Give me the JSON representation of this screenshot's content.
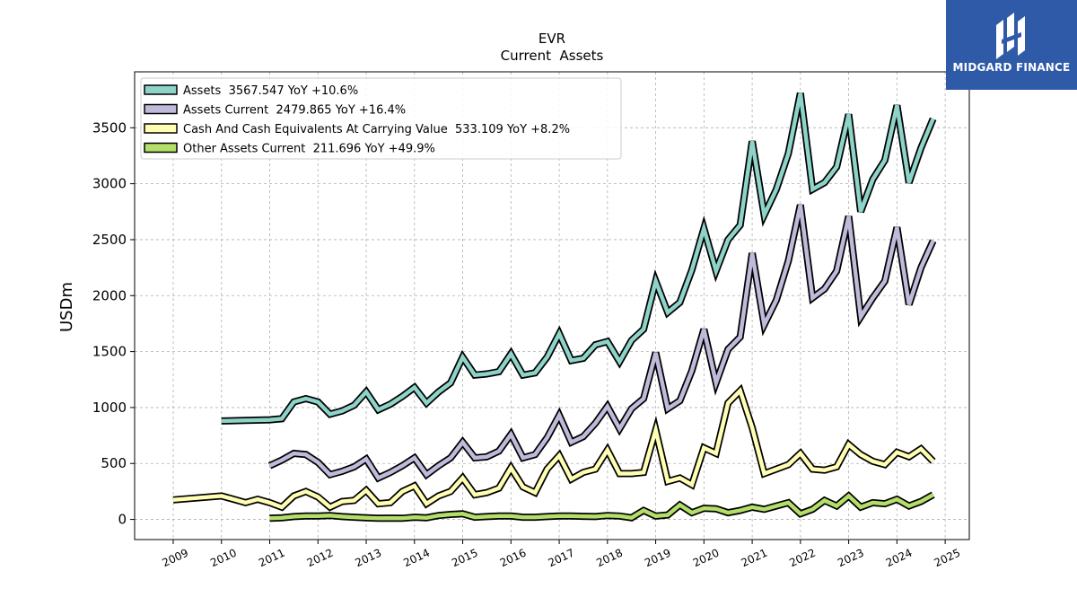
{
  "brand": {
    "name": "MIDGARD FINANCE",
    "bg_color": "#2f5aa8"
  },
  "chart_data": {
    "type": "line",
    "title": "EVR",
    "subtitle": "Current  Assets",
    "ylabel": "USDm",
    "xlabel": "",
    "xlim": [
      2008.2,
      2025.5
    ],
    "ylim": [
      -180,
      4000
    ],
    "x_ticks": [
      2009,
      2010,
      2011,
      2012,
      2013,
      2014,
      2015,
      2016,
      2017,
      2018,
      2019,
      2020,
      2021,
      2022,
      2023,
      2024,
      2025
    ],
    "y_ticks": [
      0,
      500,
      1000,
      1500,
      2000,
      2500,
      3000,
      3500
    ],
    "grid": true,
    "legend_position": "top-left",
    "series": [
      {
        "name": "Assets",
        "legend_label": "Assets  3567.547 YoY +10.6%",
        "color": "#8dd3c7",
        "points": [
          [
            2010.0,
            880
          ],
          [
            2010.5,
            885
          ],
          [
            2011.0,
            890
          ],
          [
            2011.25,
            900
          ],
          [
            2011.5,
            1050
          ],
          [
            2011.75,
            1080
          ],
          [
            2012.0,
            1050
          ],
          [
            2012.25,
            940
          ],
          [
            2012.5,
            970
          ],
          [
            2012.75,
            1020
          ],
          [
            2013.0,
            1140
          ],
          [
            2013.25,
            980
          ],
          [
            2013.5,
            1030
          ],
          [
            2013.75,
            1100
          ],
          [
            2014.0,
            1180
          ],
          [
            2014.25,
            1040
          ],
          [
            2014.5,
            1140
          ],
          [
            2014.75,
            1220
          ],
          [
            2015.0,
            1450
          ],
          [
            2015.25,
            1290
          ],
          [
            2015.5,
            1300
          ],
          [
            2015.75,
            1320
          ],
          [
            2016.0,
            1480
          ],
          [
            2016.25,
            1290
          ],
          [
            2016.5,
            1310
          ],
          [
            2016.75,
            1450
          ],
          [
            2017.0,
            1660
          ],
          [
            2017.25,
            1420
          ],
          [
            2017.5,
            1440
          ],
          [
            2017.75,
            1560
          ],
          [
            2018.0,
            1590
          ],
          [
            2018.25,
            1410
          ],
          [
            2018.5,
            1600
          ],
          [
            2018.75,
            1700
          ],
          [
            2019.0,
            2130
          ],
          [
            2019.25,
            1850
          ],
          [
            2019.5,
            1940
          ],
          [
            2019.75,
            2230
          ],
          [
            2020.0,
            2600
          ],
          [
            2020.25,
            2220
          ],
          [
            2020.5,
            2500
          ],
          [
            2020.75,
            2630
          ],
          [
            2021.0,
            3380
          ],
          [
            2021.25,
            2720
          ],
          [
            2021.5,
            2950
          ],
          [
            2021.75,
            3270
          ],
          [
            2022.0,
            3810
          ],
          [
            2022.25,
            2950
          ],
          [
            2022.5,
            3010
          ],
          [
            2022.75,
            3150
          ],
          [
            2023.0,
            3620
          ],
          [
            2023.25,
            2750
          ],
          [
            2023.5,
            3040
          ],
          [
            2023.75,
            3210
          ],
          [
            2024.0,
            3700
          ],
          [
            2024.25,
            3010
          ],
          [
            2024.5,
            3320
          ],
          [
            2024.75,
            3580
          ]
        ]
      },
      {
        "name": "Assets Current",
        "legend_label": "Assets Current  2479.865 YoY +16.4%",
        "color": "#bebada",
        "points": [
          [
            2011.0,
            480
          ],
          [
            2011.25,
            530
          ],
          [
            2011.5,
            590
          ],
          [
            2011.75,
            580
          ],
          [
            2012.0,
            510
          ],
          [
            2012.25,
            400
          ],
          [
            2012.5,
            430
          ],
          [
            2012.75,
            470
          ],
          [
            2013.0,
            540
          ],
          [
            2013.25,
            370
          ],
          [
            2013.5,
            420
          ],
          [
            2013.75,
            480
          ],
          [
            2014.0,
            550
          ],
          [
            2014.25,
            400
          ],
          [
            2014.5,
            480
          ],
          [
            2014.75,
            550
          ],
          [
            2015.0,
            690
          ],
          [
            2015.25,
            550
          ],
          [
            2015.5,
            560
          ],
          [
            2015.75,
            610
          ],
          [
            2016.0,
            760
          ],
          [
            2016.25,
            550
          ],
          [
            2016.5,
            580
          ],
          [
            2016.75,
            730
          ],
          [
            2017.0,
            930
          ],
          [
            2017.25,
            690
          ],
          [
            2017.5,
            740
          ],
          [
            2017.75,
            860
          ],
          [
            2018.0,
            1010
          ],
          [
            2018.25,
            810
          ],
          [
            2018.5,
            990
          ],
          [
            2018.75,
            1080
          ],
          [
            2019.0,
            1490
          ],
          [
            2019.25,
            990
          ],
          [
            2019.5,
            1060
          ],
          [
            2019.75,
            1330
          ],
          [
            2020.0,
            1700
          ],
          [
            2020.25,
            1220
          ],
          [
            2020.5,
            1520
          ],
          [
            2020.75,
            1630
          ],
          [
            2021.0,
            2380
          ],
          [
            2021.25,
            1740
          ],
          [
            2021.5,
            1960
          ],
          [
            2021.75,
            2310
          ],
          [
            2022.0,
            2810
          ],
          [
            2022.25,
            1980
          ],
          [
            2022.5,
            2060
          ],
          [
            2022.75,
            2220
          ],
          [
            2023.0,
            2710
          ],
          [
            2023.25,
            1810
          ],
          [
            2023.5,
            1980
          ],
          [
            2023.75,
            2130
          ],
          [
            2024.0,
            2610
          ],
          [
            2024.25,
            1920
          ],
          [
            2024.5,
            2250
          ],
          [
            2024.75,
            2490
          ]
        ]
      },
      {
        "name": "Cash And Cash Equivalents At Carrying Value",
        "legend_label": "Cash And Cash Equivalents At Carrying Value  533.109 YoY +8.2%",
        "color": "#ffffb3",
        "points": [
          [
            2009.0,
            175
          ],
          [
            2010.0,
            210
          ],
          [
            2010.25,
            180
          ],
          [
            2010.5,
            150
          ],
          [
            2010.75,
            180
          ],
          [
            2011.0,
            150
          ],
          [
            2011.25,
            110
          ],
          [
            2011.5,
            210
          ],
          [
            2011.75,
            250
          ],
          [
            2012.0,
            200
          ],
          [
            2012.25,
            110
          ],
          [
            2012.5,
            160
          ],
          [
            2012.75,
            170
          ],
          [
            2013.0,
            260
          ],
          [
            2013.25,
            140
          ],
          [
            2013.5,
            150
          ],
          [
            2013.75,
            250
          ],
          [
            2014.0,
            300
          ],
          [
            2014.25,
            140
          ],
          [
            2014.5,
            210
          ],
          [
            2014.75,
            250
          ],
          [
            2015.0,
            370
          ],
          [
            2015.25,
            220
          ],
          [
            2015.5,
            240
          ],
          [
            2015.75,
            280
          ],
          [
            2016.0,
            460
          ],
          [
            2016.25,
            290
          ],
          [
            2016.5,
            240
          ],
          [
            2016.75,
            450
          ],
          [
            2017.0,
            570
          ],
          [
            2017.25,
            360
          ],
          [
            2017.5,
            420
          ],
          [
            2017.75,
            450
          ],
          [
            2018.0,
            620
          ],
          [
            2018.25,
            410
          ],
          [
            2018.5,
            410
          ],
          [
            2018.75,
            420
          ],
          [
            2019.0,
            800
          ],
          [
            2019.25,
            340
          ],
          [
            2019.5,
            370
          ],
          [
            2019.75,
            310
          ],
          [
            2020.0,
            640
          ],
          [
            2020.25,
            590
          ],
          [
            2020.5,
            1040
          ],
          [
            2020.75,
            1150
          ],
          [
            2021.0,
            820
          ],
          [
            2021.25,
            410
          ],
          [
            2021.5,
            450
          ],
          [
            2021.75,
            490
          ],
          [
            2022.0,
            590
          ],
          [
            2022.25,
            450
          ],
          [
            2022.5,
            440
          ],
          [
            2022.75,
            470
          ],
          [
            2023.0,
            670
          ],
          [
            2023.25,
            580
          ],
          [
            2023.5,
            520
          ],
          [
            2023.75,
            490
          ],
          [
            2024.0,
            600
          ],
          [
            2024.25,
            560
          ],
          [
            2024.5,
            630
          ],
          [
            2024.75,
            520
          ]
        ]
      },
      {
        "name": "Other Assets Current",
        "legend_label": "Other Assets Current  211.696 YoY +49.9%",
        "color": "#b3de69",
        "points": [
          [
            2011.0,
            10
          ],
          [
            2011.25,
            15
          ],
          [
            2011.5,
            25
          ],
          [
            2011.75,
            30
          ],
          [
            2012.0,
            30
          ],
          [
            2012.25,
            35
          ],
          [
            2012.5,
            25
          ],
          [
            2012.75,
            20
          ],
          [
            2013.0,
            15
          ],
          [
            2013.25,
            10
          ],
          [
            2013.5,
            12
          ],
          [
            2013.75,
            10
          ],
          [
            2014.0,
            20
          ],
          [
            2014.25,
            15
          ],
          [
            2014.5,
            35
          ],
          [
            2014.75,
            45
          ],
          [
            2015.0,
            50
          ],
          [
            2015.25,
            20
          ],
          [
            2015.5,
            25
          ],
          [
            2015.75,
            30
          ],
          [
            2016.0,
            30
          ],
          [
            2016.25,
            20
          ],
          [
            2016.5,
            20
          ],
          [
            2016.75,
            25
          ],
          [
            2017.0,
            30
          ],
          [
            2017.25,
            30
          ],
          [
            2017.5,
            28
          ],
          [
            2017.75,
            25
          ],
          [
            2018.0,
            35
          ],
          [
            2018.25,
            30
          ],
          [
            2018.5,
            15
          ],
          [
            2018.75,
            80
          ],
          [
            2019.0,
            30
          ],
          [
            2019.25,
            40
          ],
          [
            2019.5,
            130
          ],
          [
            2019.75,
            60
          ],
          [
            2020.0,
            100
          ],
          [
            2020.25,
            95
          ],
          [
            2020.5,
            60
          ],
          [
            2020.75,
            80
          ],
          [
            2021.0,
            110
          ],
          [
            2021.25,
            90
          ],
          [
            2021.5,
            120
          ],
          [
            2021.75,
            150
          ],
          [
            2022.0,
            50
          ],
          [
            2022.25,
            90
          ],
          [
            2022.5,
            170
          ],
          [
            2022.75,
            120
          ],
          [
            2023.0,
            210
          ],
          [
            2023.25,
            110
          ],
          [
            2023.5,
            150
          ],
          [
            2023.75,
            140
          ],
          [
            2024.0,
            180
          ],
          [
            2024.25,
            120
          ],
          [
            2024.5,
            160
          ],
          [
            2024.75,
            220
          ]
        ]
      }
    ]
  }
}
